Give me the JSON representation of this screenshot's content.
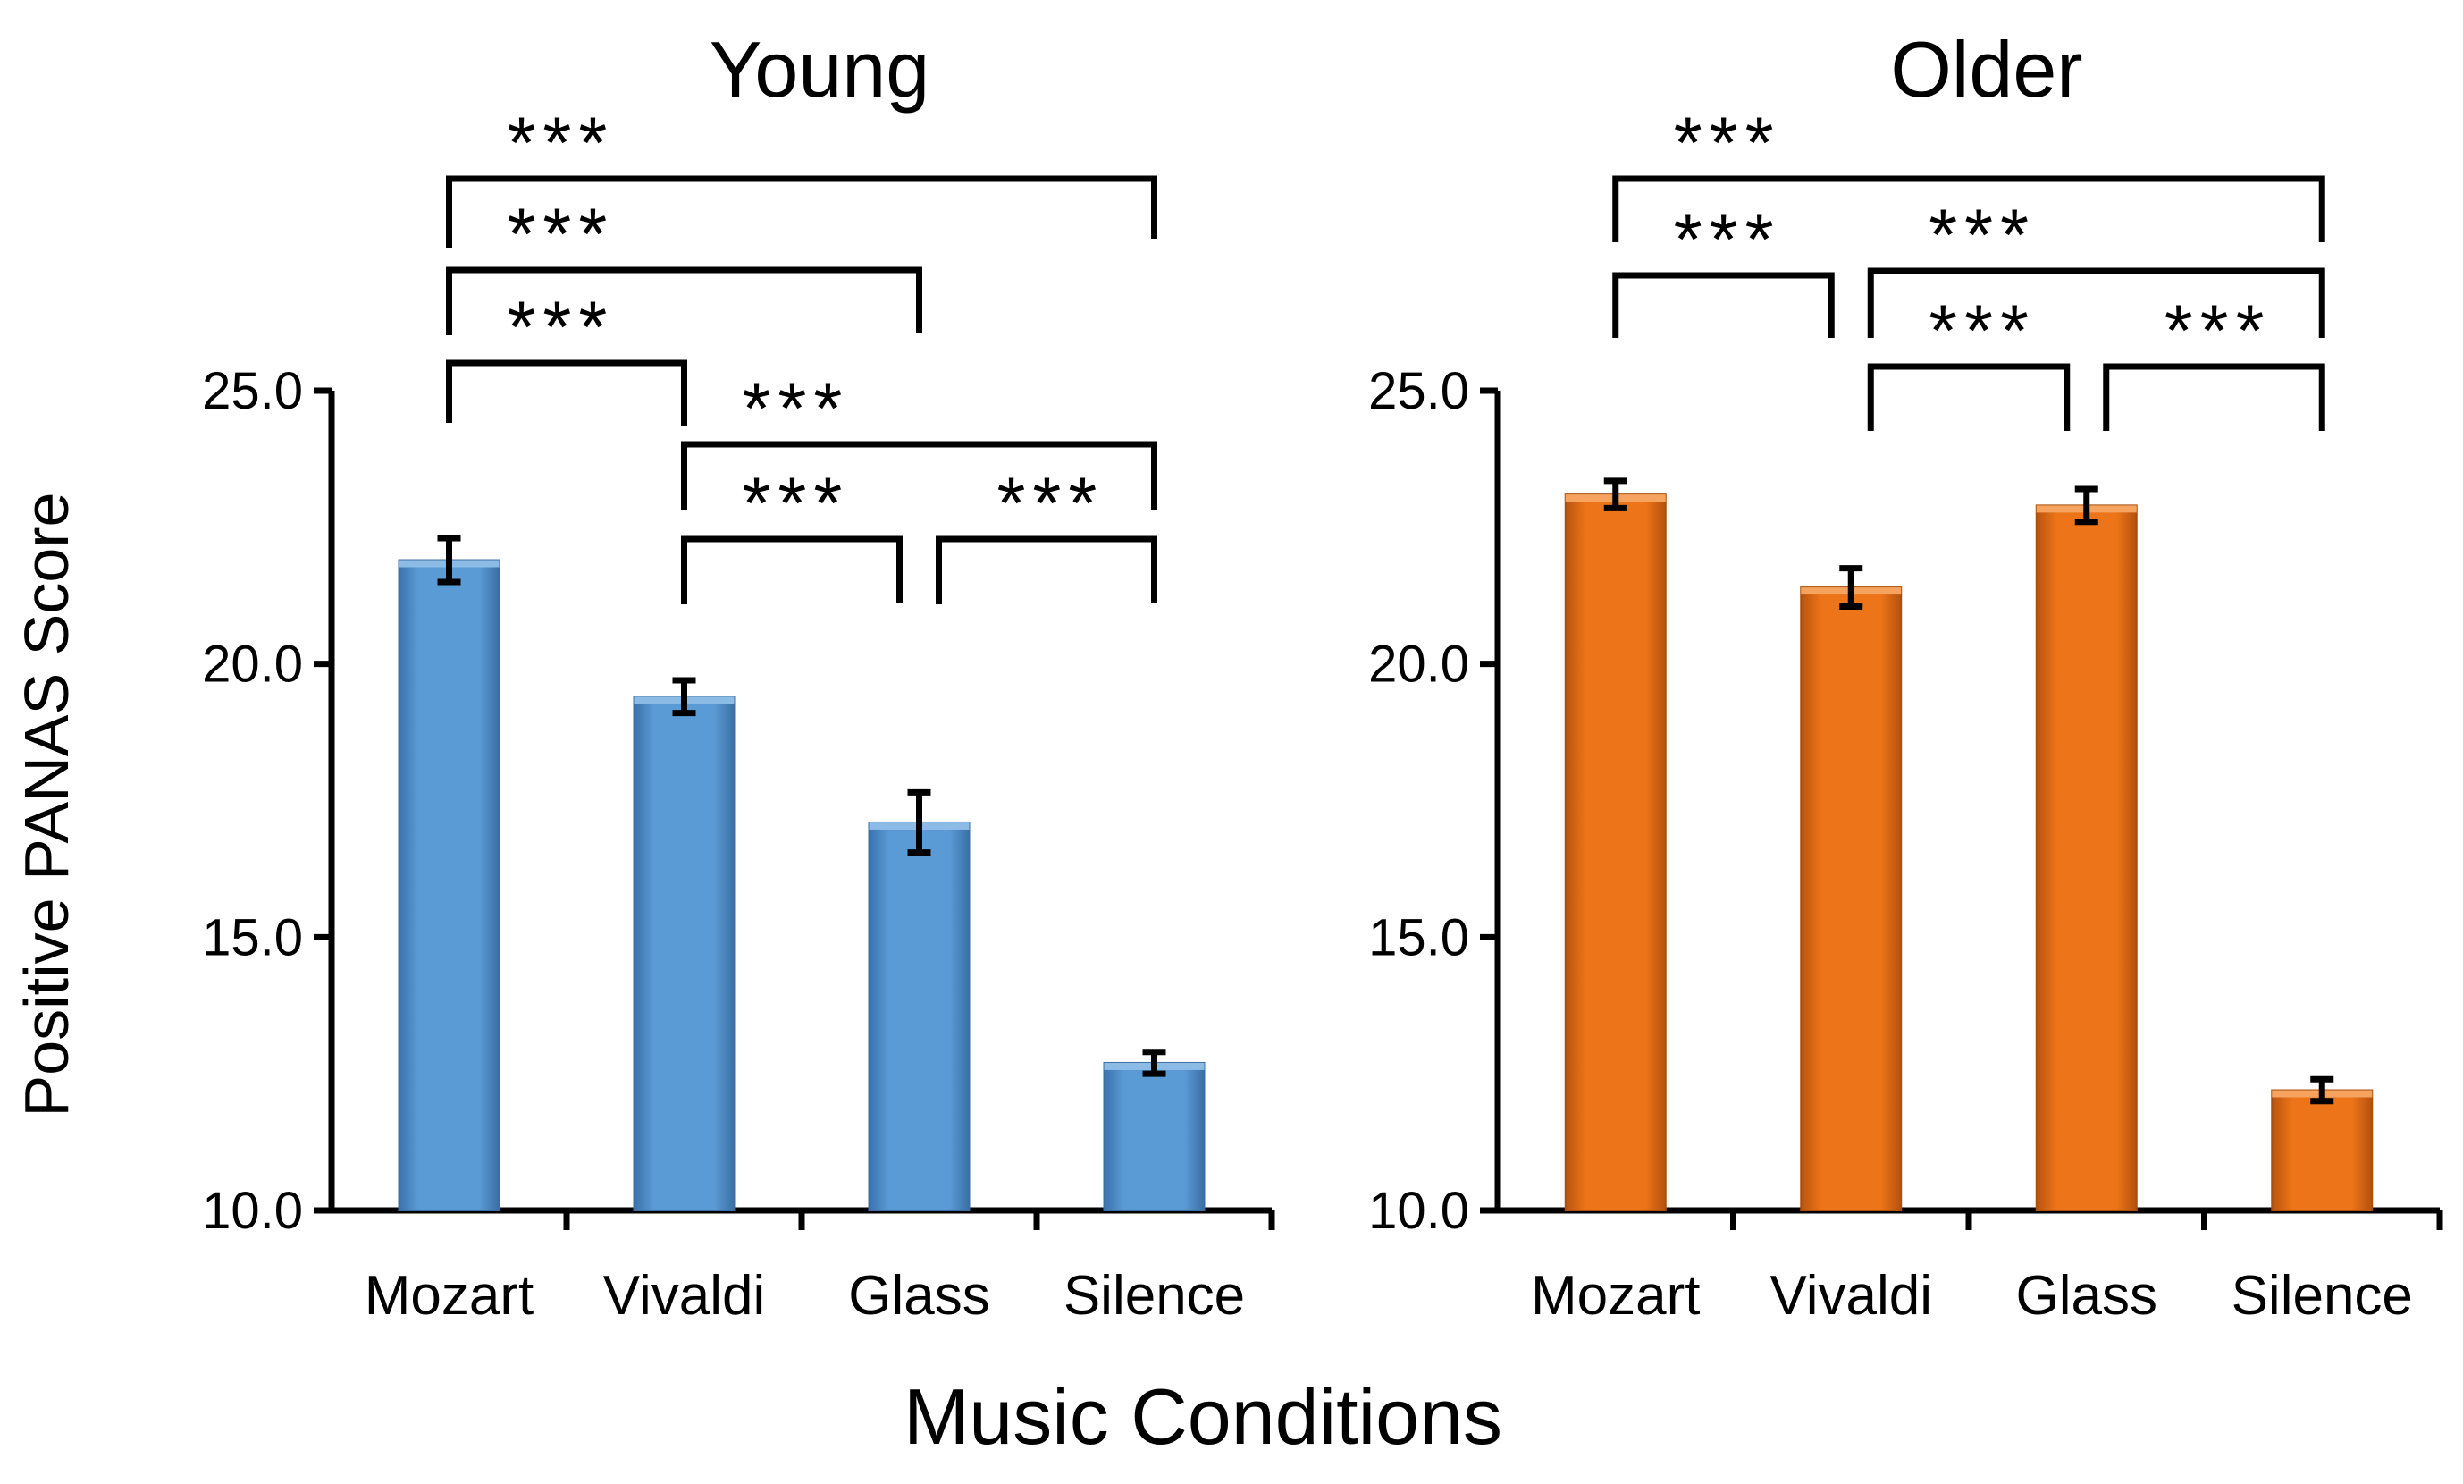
{
  "chart_data": {
    "type": "bar",
    "ylabel": "Positive PANAS Score",
    "xlabel": "Music Conditions",
    "categories": [
      "Mozart",
      "Vivaldi",
      "Glass",
      "Silence"
    ],
    "ylim": [
      10.0,
      25.0
    ],
    "yticks": [
      "10.0",
      "15.0",
      "20.0",
      "25.0"
    ],
    "panels": [
      {
        "title": "Young",
        "color": "#5b9bd5",
        "values": [
          21.9,
          19.4,
          17.1,
          12.7
        ],
        "errors": [
          0.4,
          0.3,
          0.55,
          0.2
        ],
        "significance": [
          {
            "from": 0,
            "to": 3,
            "label": "***"
          },
          {
            "from": 0,
            "to": 2,
            "label": "***"
          },
          {
            "from": 0,
            "to": 1,
            "label": "***"
          },
          {
            "from": 1,
            "to": 3,
            "label": "***"
          },
          {
            "from": 1,
            "to": 2,
            "label": "***"
          },
          {
            "from": 2,
            "to": 3,
            "label": "***"
          }
        ]
      },
      {
        "title": "Older",
        "color": "#ed7418",
        "values": [
          23.1,
          21.4,
          22.9,
          12.2
        ],
        "errors": [
          0.25,
          0.35,
          0.3,
          0.2
        ],
        "significance": [
          {
            "from": 0,
            "to": 3,
            "label": "***"
          },
          {
            "from": 0,
            "to": 1,
            "label": "***"
          },
          {
            "from": 1,
            "to": 3,
            "label": "***"
          },
          {
            "from": 1,
            "to": 2,
            "label": "***"
          },
          {
            "from": 2,
            "to": 3,
            "label": "***"
          }
        ]
      }
    ]
  }
}
